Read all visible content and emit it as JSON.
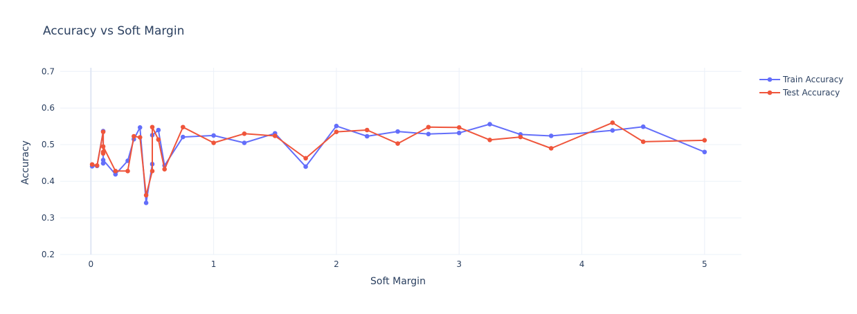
{
  "chart_data": {
    "type": "line",
    "title": "Accuracy vs Soft Margin",
    "xlabel": "Soft Margin",
    "ylabel": "Accuracy",
    "xlim": [
      -0.25,
      5.3
    ],
    "ylim": [
      0.2,
      0.71
    ],
    "x_ticks": [
      0,
      1,
      2,
      3,
      4,
      5
    ],
    "y_ticks": [
      0.2,
      0.3,
      0.4,
      0.5,
      0.6,
      0.7
    ],
    "x_tick_labels": [
      "0",
      "1",
      "2",
      "3",
      "4",
      "5"
    ],
    "y_tick_labels": [
      "0.2",
      "0.3",
      "0.4",
      "0.5",
      "0.6",
      "0.7"
    ],
    "grid": true,
    "legend_position": "top-right",
    "series": [
      {
        "name": "Train Accuracy",
        "color": "#636efa",
        "points": [
          [
            0.01,
            0.441
          ],
          [
            0.05,
            0.442
          ],
          [
            0.1,
            0.537
          ],
          [
            0.1,
            0.449
          ],
          [
            0.1,
            0.458
          ],
          [
            0.2,
            0.419
          ],
          [
            0.3,
            0.456
          ],
          [
            0.35,
            0.515
          ],
          [
            0.4,
            0.547
          ],
          [
            0.45,
            0.341
          ],
          [
            0.5,
            0.447
          ],
          [
            0.5,
            0.526
          ],
          [
            0.55,
            0.54
          ],
          [
            0.6,
            0.443
          ],
          [
            0.75,
            0.521
          ],
          [
            1.0,
            0.525
          ],
          [
            1.25,
            0.505
          ],
          [
            1.5,
            0.531
          ],
          [
            1.75,
            0.44
          ],
          [
            2.0,
            0.551
          ],
          [
            2.25,
            0.523
          ],
          [
            2.5,
            0.536
          ],
          [
            2.75,
            0.529
          ],
          [
            3.0,
            0.532
          ],
          [
            3.25,
            0.556
          ],
          [
            3.5,
            0.528
          ],
          [
            3.75,
            0.524
          ],
          [
            4.25,
            0.539
          ],
          [
            4.5,
            0.549
          ],
          [
            5.0,
            0.48
          ]
        ]
      },
      {
        "name": "Test Accuracy",
        "color": "#ef553b",
        "points": [
          [
            0.01,
            0.446
          ],
          [
            0.05,
            0.443
          ],
          [
            0.1,
            0.535
          ],
          [
            0.1,
            0.48
          ],
          [
            0.1,
            0.476
          ],
          [
            0.1,
            0.495
          ],
          [
            0.2,
            0.428
          ],
          [
            0.3,
            0.428
          ],
          [
            0.35,
            0.523
          ],
          [
            0.4,
            0.52
          ],
          [
            0.45,
            0.362
          ],
          [
            0.5,
            0.428
          ],
          [
            0.5,
            0.548
          ],
          [
            0.55,
            0.514
          ],
          [
            0.6,
            0.433
          ],
          [
            0.75,
            0.548
          ],
          [
            1.0,
            0.505
          ],
          [
            1.25,
            0.53
          ],
          [
            1.5,
            0.524
          ],
          [
            1.75,
            0.463
          ],
          [
            2.0,
            0.535
          ],
          [
            2.25,
            0.54
          ],
          [
            2.5,
            0.503
          ],
          [
            2.75,
            0.548
          ],
          [
            3.0,
            0.547
          ],
          [
            3.25,
            0.513
          ],
          [
            3.5,
            0.521
          ],
          [
            3.75,
            0.49
          ],
          [
            4.25,
            0.56
          ],
          [
            4.5,
            0.508
          ],
          [
            5.0,
            0.512
          ]
        ]
      }
    ]
  }
}
